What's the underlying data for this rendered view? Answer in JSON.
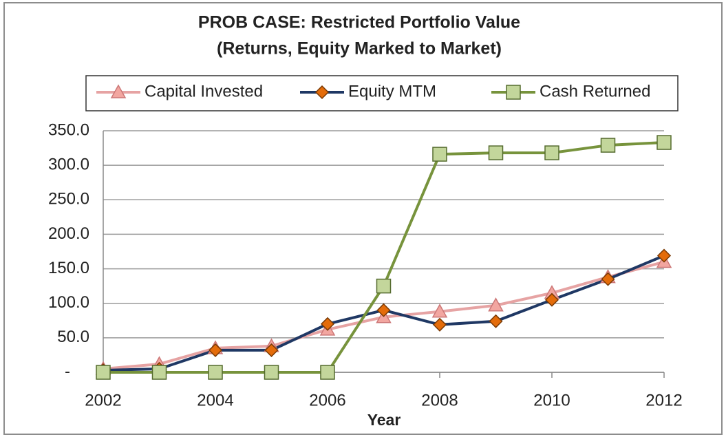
{
  "chart_data": {
    "type": "line",
    "title": "PROB CASE: Restricted Portfolio Value",
    "subtitle": "(Returns, Equity Marked to Market)",
    "x_label": "Year",
    "x": [
      2002,
      2003,
      2004,
      2005,
      2006,
      2007,
      2008,
      2009,
      2010,
      2011,
      2012
    ],
    "xlim": [
      2002,
      2012
    ],
    "xticks": [
      2002,
      2004,
      2006,
      2008,
      2010,
      2012
    ],
    "ylim": [
      0,
      350
    ],
    "yticks": [
      {
        "value": 0,
        "label": "-"
      },
      {
        "value": 50,
        "label": "50.0"
      },
      {
        "value": 100,
        "label": "100.0"
      },
      {
        "value": 150,
        "label": "150.0"
      },
      {
        "value": 200,
        "label": "200.0"
      },
      {
        "value": 250,
        "label": "250.0"
      },
      {
        "value": 300,
        "label": "300.0"
      },
      {
        "value": 350,
        "label": "350.0"
      }
    ],
    "grid": true,
    "legend": "top",
    "series": [
      {
        "name": "Capital Invested",
        "color": "#e6a3a3",
        "marker": "triangle",
        "marker_color": "#f2a6a0",
        "values": [
          5,
          12,
          35,
          38,
          62,
          80,
          88,
          97,
          115,
          138,
          160
        ]
      },
      {
        "name": "Equity MTM",
        "color": "#1f3864",
        "marker": "diamond",
        "marker_color": "#e46c0a",
        "values": [
          3,
          5,
          32,
          32,
          70,
          90,
          69,
          74,
          105,
          135,
          169
        ]
      },
      {
        "name": "Cash Returned",
        "color": "#77933c",
        "marker": "square",
        "marker_color": "#c3d69b",
        "values": [
          0,
          0,
          0,
          0,
          0,
          125,
          316,
          318,
          318,
          329,
          333
        ]
      }
    ]
  }
}
